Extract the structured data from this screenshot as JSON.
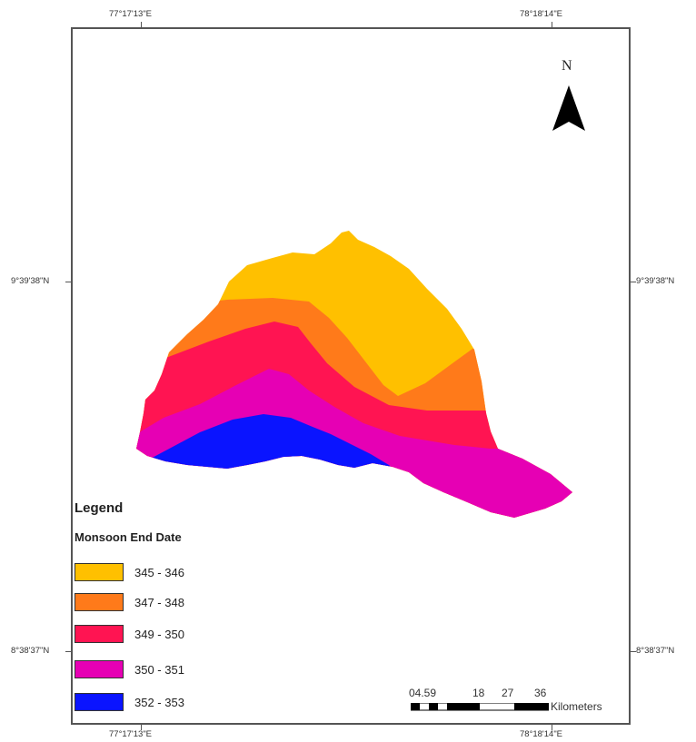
{
  "map": {
    "coords": {
      "top_left": "77°17'13\"E",
      "top_right": "78°18'14\"E",
      "bottom_left": "77°17'13\"E",
      "bottom_right": "78°18'14\"E",
      "left_upper": "9°39'38\"N",
      "right_upper": "9°39'38\"N",
      "left_lower": "8°38'37\"N",
      "right_lower": "8°38'37\"N"
    },
    "north_label": "N",
    "legend": {
      "title": "Legend",
      "subtitle": "Monsoon End Date",
      "items": [
        {
          "label": "345 - 346",
          "color": "#FFC000"
        },
        {
          "label": "347 - 348",
          "color": "#FF7A1A"
        },
        {
          "label": "349 - 350",
          "color": "#FF1452"
        },
        {
          "label": "350 - 351",
          "color": "#E600B4"
        },
        {
          "label": "352 - 353",
          "color": "#0A14FF"
        }
      ]
    },
    "scalebar": {
      "ticks": [
        "04.59",
        "18",
        "27",
        "36"
      ],
      "unit": "Kilometers"
    },
    "zone_colors": {
      "yellow": "#FFC000",
      "orange": "#FF7A1A",
      "red": "#FF1452",
      "magenta": "#E600B4",
      "blue": "#0A14FF"
    }
  }
}
